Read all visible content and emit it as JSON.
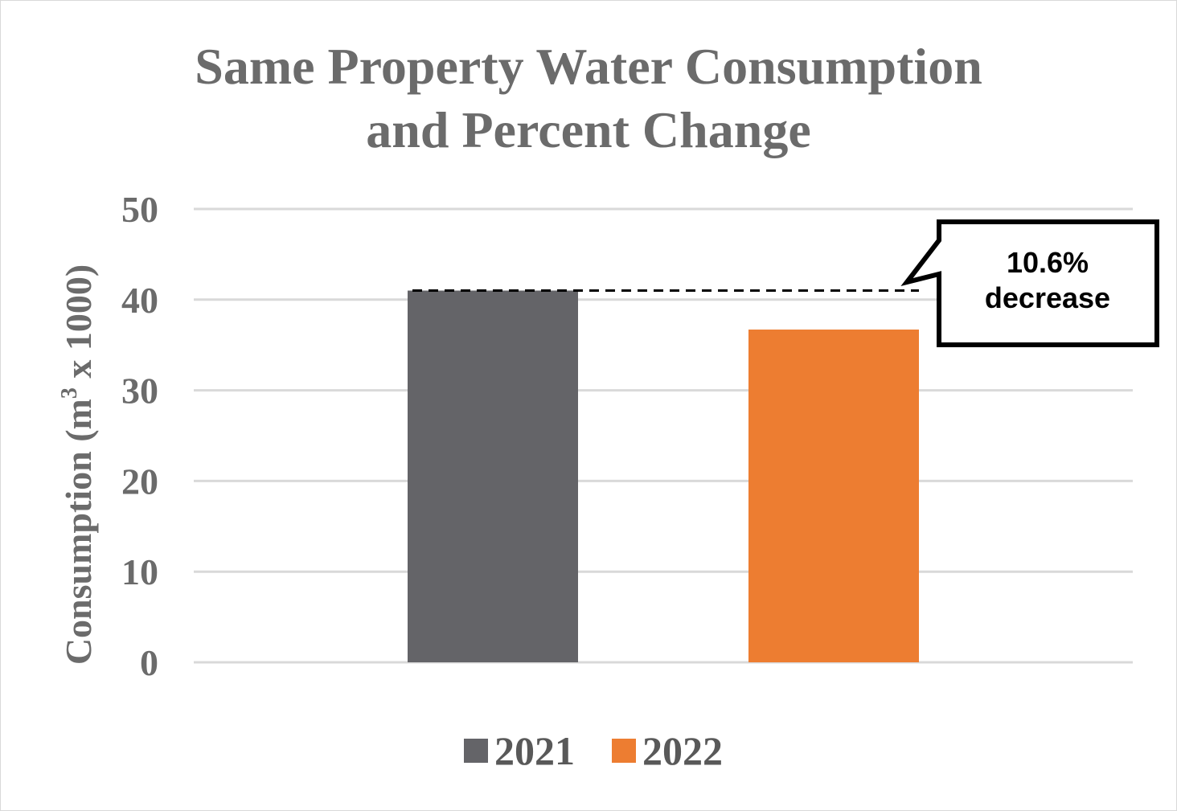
{
  "chart_data": {
    "type": "bar",
    "title_lines": [
      "Same Property Water Consumption",
      "and Percent Change"
    ],
    "ylabel_prefix": "Consumption  (m",
    "ylabel_sup": "3",
    "ylabel_suffix": " x 1000)",
    "xlabel": "",
    "ylim": [
      0,
      50
    ],
    "yticks": [
      0,
      10,
      20,
      30,
      40,
      50
    ],
    "ytick_labels": [
      "0",
      "10",
      "20",
      "30",
      "40",
      "50"
    ],
    "grid": true,
    "legend_position": "bottom",
    "series": [
      {
        "name": "2021",
        "value": 41,
        "color": "#646468"
      },
      {
        "name": "2022",
        "value": 36.7,
        "color": "#ed7d31"
      }
    ],
    "annotation": {
      "lines": [
        "10.6%",
        "decrease"
      ],
      "reference_value": 41
    }
  }
}
